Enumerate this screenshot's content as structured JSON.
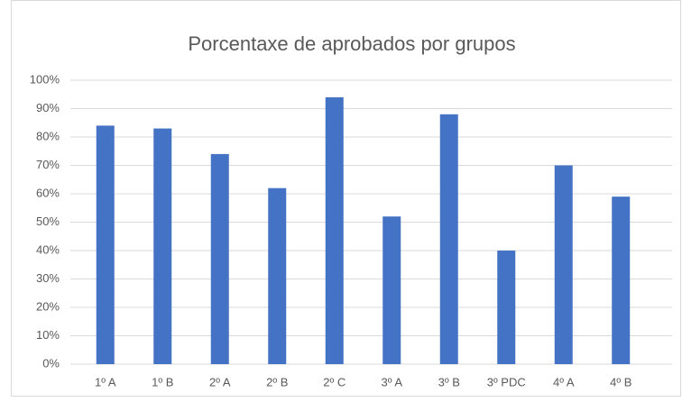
{
  "chart_data": {
    "type": "bar",
    "title": "Porcentaxe de aprobados por grupos",
    "categories": [
      "1º A",
      "1º B",
      "2º A",
      "2º B",
      "2º C",
      "3º A",
      "3º B",
      "3º PDC",
      "4º A",
      "4º B"
    ],
    "values": [
      84,
      83,
      74,
      62,
      94,
      52,
      88,
      40,
      70,
      59
    ],
    "color": "#4472c4",
    "ylim": [
      0,
      100
    ],
    "yticks": [
      {
        "value": 0,
        "label": "0%"
      },
      {
        "value": 10,
        "label": "10%"
      },
      {
        "value": 20,
        "label": "20%"
      },
      {
        "value": 30,
        "label": "30%"
      },
      {
        "value": 40,
        "label": "40%"
      },
      {
        "value": 50,
        "label": "50%"
      },
      {
        "value": 60,
        "label": "60%"
      },
      {
        "value": 70,
        "label": "70%"
      },
      {
        "value": 80,
        "label": "80%"
      },
      {
        "value": 90,
        "label": "90%"
      },
      {
        "value": 100,
        "label": "100%"
      }
    ],
    "grid": true
  }
}
